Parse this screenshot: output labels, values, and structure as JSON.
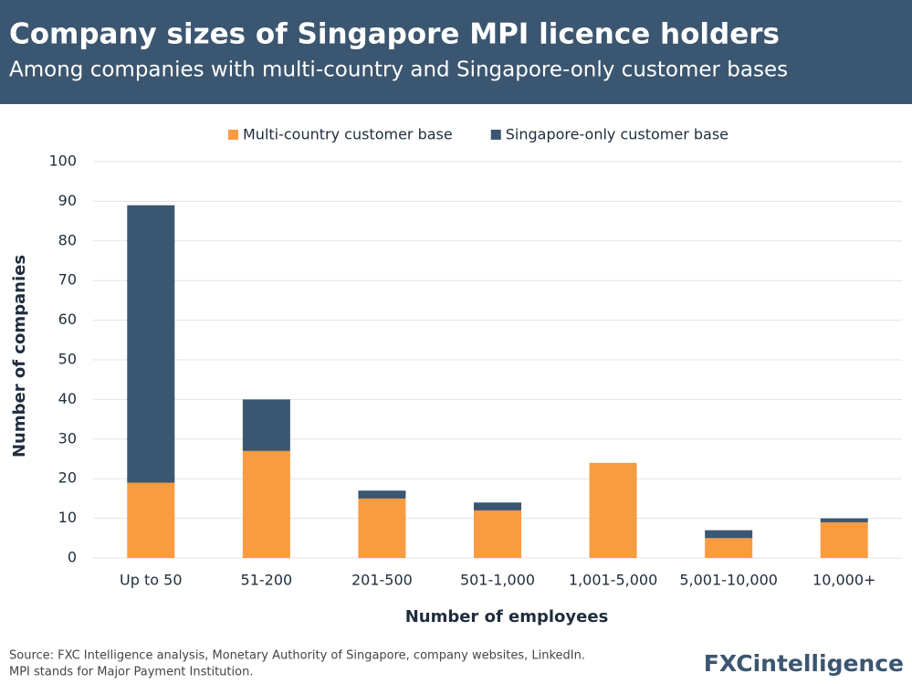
{
  "chart_data": {
    "type": "stacked_bar",
    "title": "Company sizes of Singapore MPI licence holders",
    "subtitle": "Among companies with multi-country and Singapore-only customer bases",
    "x_label": "Number of employees",
    "y_label": "Number of companies",
    "categories": [
      "Up to 50",
      "51-200",
      "201-500",
      "501-1,000",
      "1,001-5,000",
      "5,001-10,000",
      "10,000+"
    ],
    "series": [
      {
        "name": "Multi-country customer base",
        "color": "#f99b40",
        "values": [
          19,
          27,
          15,
          12,
          24,
          5,
          9
        ]
      },
      {
        "name": "Singapore-only customer base",
        "color": "#3b5670",
        "values": [
          70,
          13,
          2,
          2,
          0,
          2,
          1
        ]
      }
    ],
    "ylim": [
      0,
      100
    ],
    "yticks": [
      0,
      10,
      20,
      30,
      40,
      50,
      60,
      70,
      80,
      90,
      100
    ],
    "grid": true,
    "legend": "top",
    "source": "Source: FXC Intelligence analysis, Monetary Authority of Singapore, company websites, LinkedIn.",
    "note": "MPI stands for Major Payment Institution.",
    "logo": "FXCintelligence"
  }
}
